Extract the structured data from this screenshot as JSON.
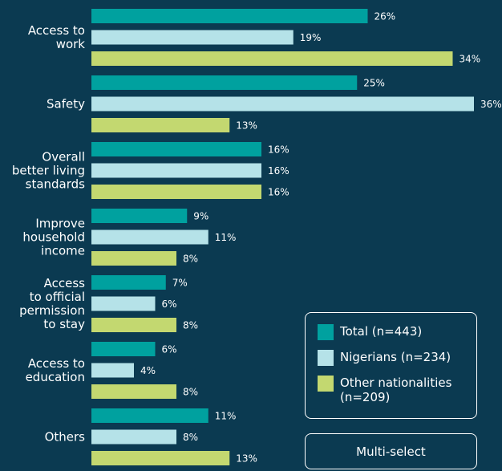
{
  "chart_data": {
    "type": "bar",
    "orientation": "horizontal",
    "categories": [
      "Access to\nwork",
      "Safety",
      "Overall\nbetter living\nstandards",
      "Improve\nhousehold\nincome",
      "Access\nto official\npermission\nto stay",
      "Access to\neducation",
      "Others"
    ],
    "series": [
      {
        "name": "Total (n=443)",
        "color": "#00a19f",
        "values": [
          26,
          25,
          16,
          9,
          7,
          6,
          11
        ],
        "value_labels": [
          "26%",
          "25%",
          "16%",
          "9%",
          "7%",
          "6%",
          "11%"
        ]
      },
      {
        "name": "Nigerians (n=234)",
        "color": "#b5e2e8",
        "values": [
          19,
          36,
          16,
          11,
          6,
          4,
          8
        ],
        "value_labels": [
          "19%",
          "36%",
          "16%",
          "11%",
          "6%",
          "4%",
          "8%"
        ]
      },
      {
        "name": "Other nationalities (n=209)",
        "color": "#c3d870",
        "values": [
          34,
          13,
          16,
          8,
          8,
          8,
          13
        ],
        "value_labels": [
          "34%",
          "13%",
          "16%",
          "8%",
          "8%",
          "8%",
          "13%"
        ]
      }
    ],
    "annotation": "Multi-select"
  }
}
